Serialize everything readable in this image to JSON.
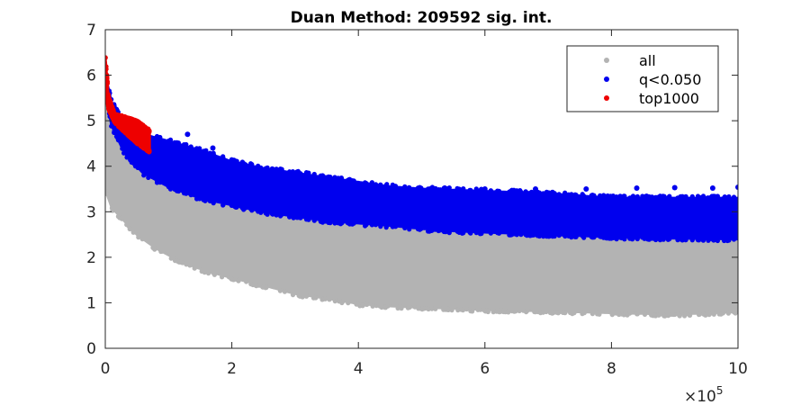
{
  "chart_data": {
    "type": "scatter",
    "title": "Duan Method: 209592 sig. int.",
    "xlabel": "",
    "ylabel": "",
    "xlim": [
      0,
      1000000
    ],
    "ylim": [
      0,
      7
    ],
    "x_ticks": [
      0,
      200000,
      400000,
      600000,
      800000,
      1000000
    ],
    "x_tick_labels": [
      "0",
      "2",
      "4",
      "6",
      "8",
      "10"
    ],
    "x_multiplier_base": "×10",
    "x_multiplier_exponent": "5",
    "y_ticks": [
      0,
      1,
      2,
      3,
      4,
      5,
      6,
      7
    ],
    "y_tick_labels": [
      "0",
      "1",
      "2",
      "3",
      "4",
      "5",
      "6",
      "7"
    ],
    "grid": false,
    "legend_position": "top-right",
    "series": [
      {
        "name": "all",
        "color": "#b3b3b3",
        "lower_envelope": [
          [
            0,
            3.5
          ],
          [
            10000,
            3.1
          ],
          [
            30000,
            2.8
          ],
          [
            50000,
            2.5
          ],
          [
            80000,
            2.2
          ],
          [
            120000,
            1.9
          ],
          [
            160000,
            1.7
          ],
          [
            200000,
            1.55
          ],
          [
            260000,
            1.35
          ],
          [
            300000,
            1.2
          ],
          [
            350000,
            1.1
          ],
          [
            400000,
            0.98
          ],
          [
            450000,
            0.93
          ],
          [
            500000,
            0.9
          ],
          [
            550000,
            0.88
          ],
          [
            600000,
            0.85
          ],
          [
            700000,
            0.82
          ],
          [
            800000,
            0.78
          ],
          [
            900000,
            0.75
          ],
          [
            1000000,
            0.8
          ]
        ],
        "upper_envelope": [
          [
            0,
            5.6
          ],
          [
            10000,
            4.9
          ],
          [
            30000,
            4.3
          ],
          [
            60000,
            3.85
          ],
          [
            100000,
            3.55
          ],
          [
            150000,
            3.3
          ],
          [
            200000,
            3.15
          ],
          [
            250000,
            3.0
          ],
          [
            300000,
            2.9
          ],
          [
            350000,
            2.8
          ],
          [
            400000,
            2.75
          ],
          [
            450000,
            2.7
          ],
          [
            500000,
            2.63
          ],
          [
            550000,
            2.58
          ],
          [
            600000,
            2.55
          ],
          [
            700000,
            2.5
          ],
          [
            800000,
            2.45
          ],
          [
            900000,
            2.42
          ],
          [
            1000000,
            2.4
          ]
        ]
      },
      {
        "name": "q<0.050",
        "color": "#0000ee",
        "lower_envelope": [
          [
            0,
            5.6
          ],
          [
            10000,
            4.9
          ],
          [
            30000,
            4.3
          ],
          [
            60000,
            3.85
          ],
          [
            100000,
            3.55
          ],
          [
            150000,
            3.3
          ],
          [
            200000,
            3.15
          ],
          [
            250000,
            3.0
          ],
          [
            300000,
            2.9
          ],
          [
            350000,
            2.8
          ],
          [
            400000,
            2.75
          ],
          [
            450000,
            2.7
          ],
          [
            500000,
            2.63
          ],
          [
            550000,
            2.58
          ],
          [
            600000,
            2.55
          ],
          [
            700000,
            2.5
          ],
          [
            800000,
            2.45
          ],
          [
            900000,
            2.42
          ],
          [
            1000000,
            2.4
          ]
        ],
        "upper_envelope": [
          [
            0,
            6.0
          ],
          [
            10000,
            5.4
          ],
          [
            30000,
            4.95
          ],
          [
            60000,
            4.7
          ],
          [
            100000,
            4.55
          ],
          [
            150000,
            4.35
          ],
          [
            200000,
            4.1
          ],
          [
            250000,
            3.95
          ],
          [
            300000,
            3.85
          ],
          [
            350000,
            3.75
          ],
          [
            400000,
            3.65
          ],
          [
            450000,
            3.55
          ],
          [
            500000,
            3.5
          ],
          [
            600000,
            3.45
          ],
          [
            700000,
            3.4
          ],
          [
            800000,
            3.3
          ],
          [
            900000,
            3.3
          ],
          [
            1000000,
            3.3
          ]
        ],
        "outliers": [
          [
            360000,
            3.62
          ],
          [
            480000,
            3.52
          ],
          [
            540000,
            3.5
          ],
          [
            600000,
            3.5
          ],
          [
            680000,
            3.5
          ],
          [
            760000,
            3.5
          ],
          [
            840000,
            3.52
          ],
          [
            900000,
            3.53
          ],
          [
            960000,
            3.52
          ],
          [
            1000000,
            3.54
          ],
          [
            130000,
            4.7
          ],
          [
            170000,
            4.4
          ],
          [
            220000,
            4.0
          ]
        ]
      },
      {
        "name": "top1000",
        "color": "#ee0000",
        "lower_envelope": [
          [
            0,
            5.7
          ],
          [
            5000,
            5.3
          ],
          [
            15000,
            5.0
          ],
          [
            30000,
            4.8
          ],
          [
            50000,
            4.55
          ],
          [
            70000,
            4.35
          ]
        ],
        "upper_envelope": [
          [
            0,
            6.4
          ],
          [
            5000,
            5.5
          ],
          [
            15000,
            5.1
          ],
          [
            30000,
            5.05
          ],
          [
            50000,
            4.95
          ],
          [
            70000,
            4.75
          ]
        ]
      }
    ]
  }
}
